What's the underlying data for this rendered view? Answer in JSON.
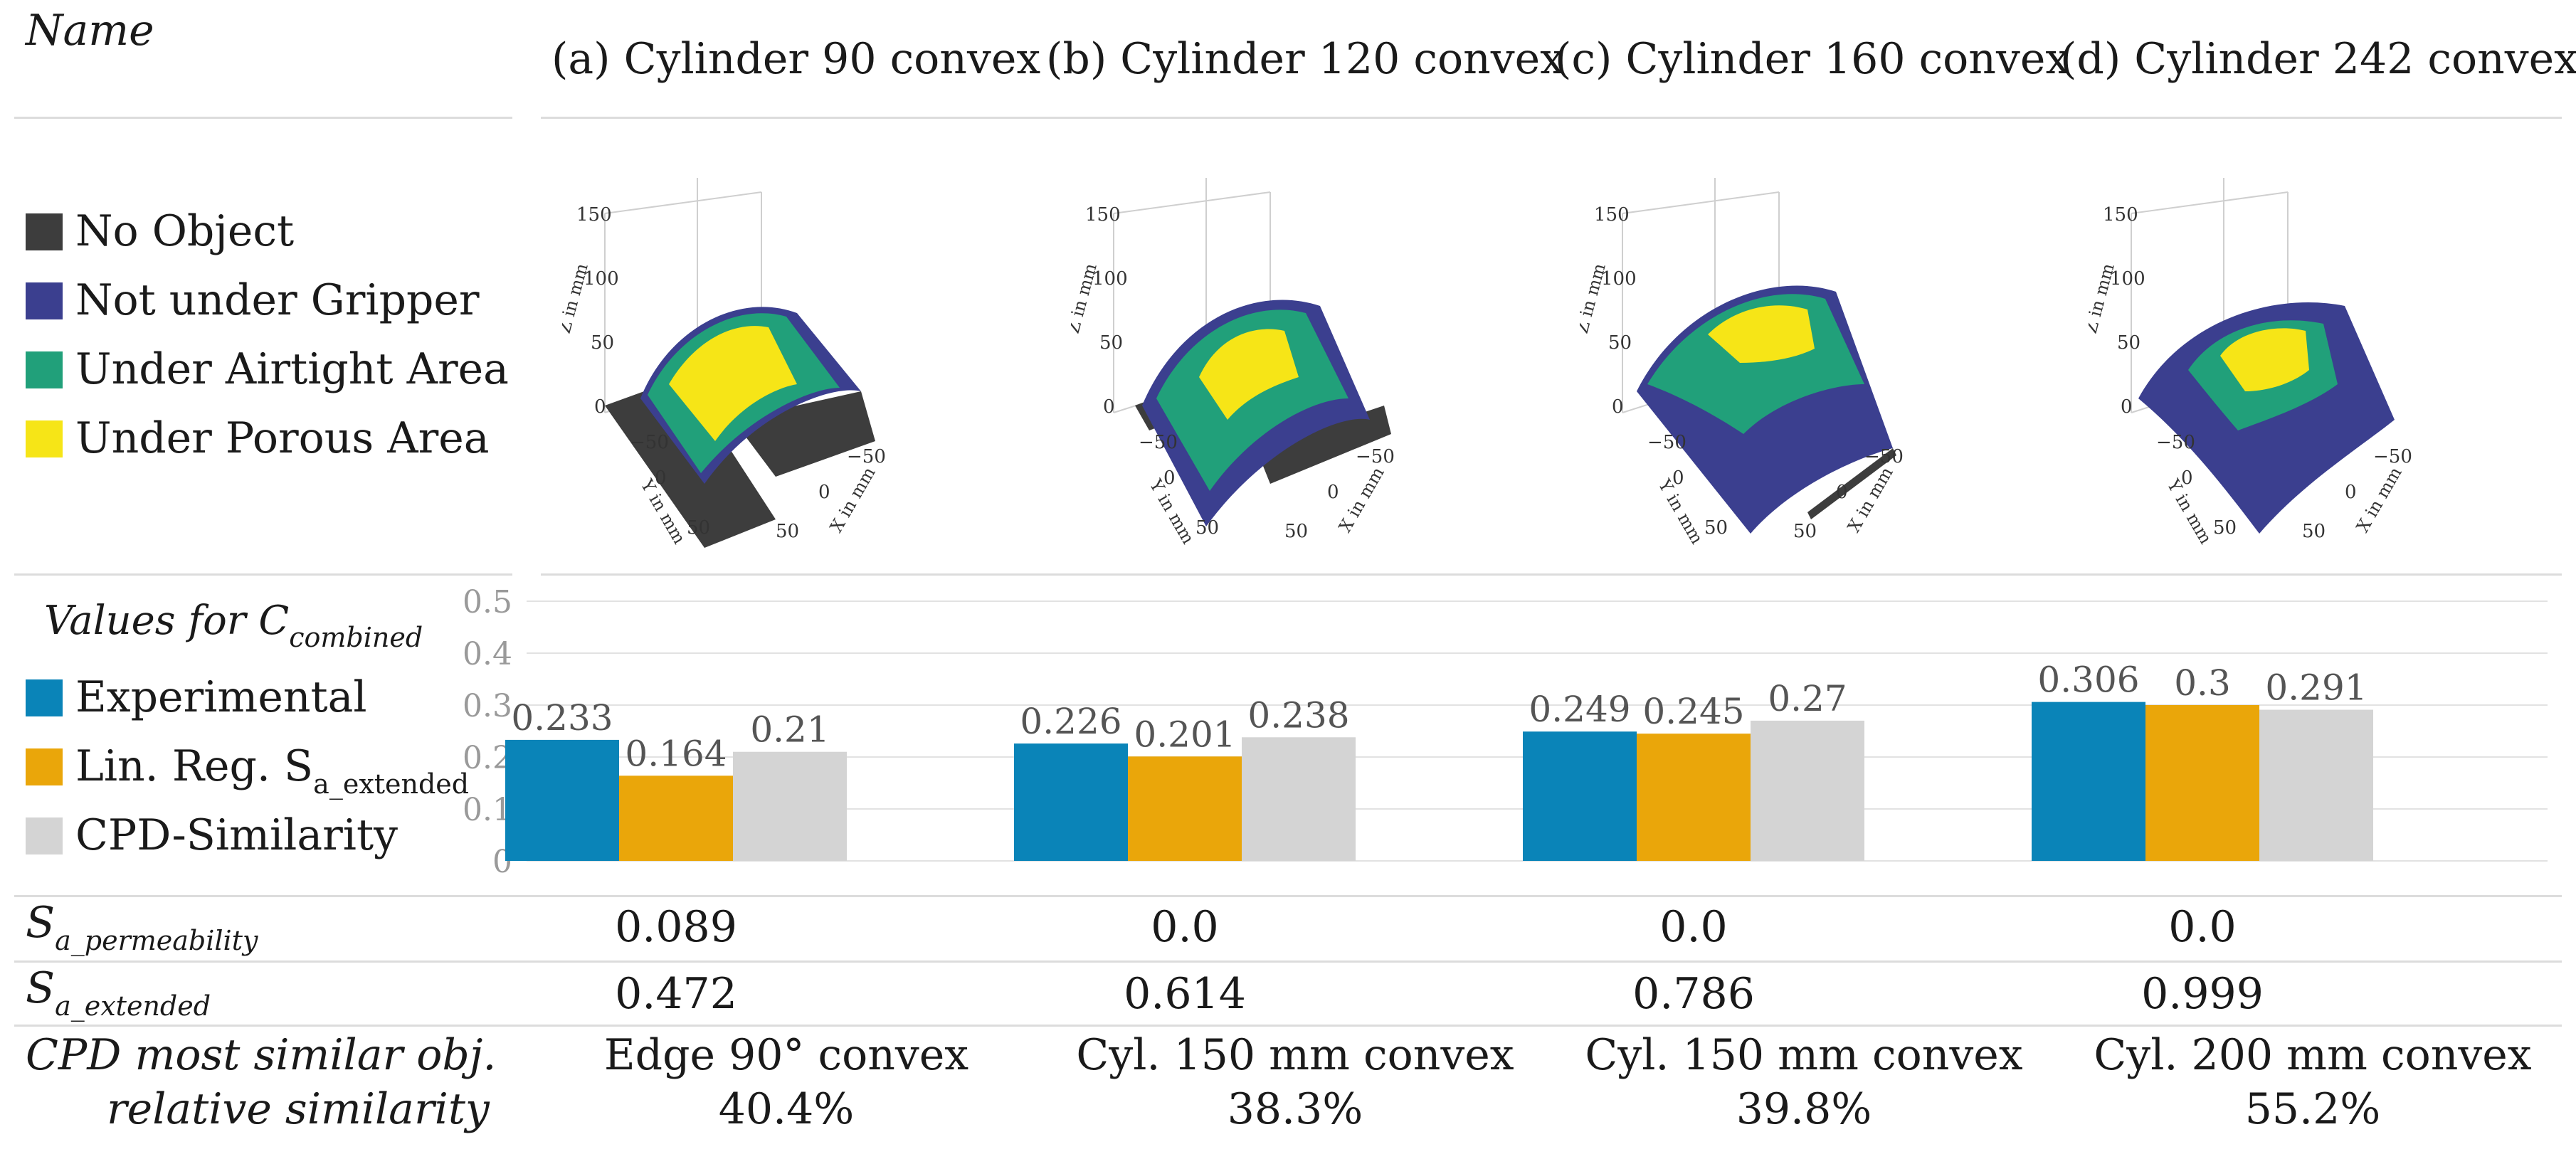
{
  "header": {
    "name_label": "Name",
    "columns": [
      "(a) Cylinder 90 convex",
      "(b) Cylinder 120 convex",
      "(c) Cylinder 160 convex",
      "(d) Cylinder 242 convex"
    ]
  },
  "legend": {
    "items": [
      {
        "label": "No Object",
        "color": "#3d3d3d"
      },
      {
        "label": "Not under Gripper",
        "color": "#3b3f8f"
      },
      {
        "label": "Under Airtight Area",
        "color": "#21a07a"
      },
      {
        "label": "Under Porous Area",
        "color": "#f6e517"
      }
    ]
  },
  "plots3d": {
    "axis_z_label": "Z in mm",
    "axis_y_label": "Y in mm",
    "axis_x_label": "X in mm",
    "z_ticks": [
      "150",
      "100",
      "50",
      "0"
    ],
    "y_ticks": [
      "−50",
      "0",
      "50"
    ],
    "x_ticks": [
      "−50",
      "0",
      "50"
    ]
  },
  "values_section": {
    "title_prefix": "Values for C",
    "title_sub": "combined",
    "series_legend": [
      {
        "label": "Experimental",
        "sub": "",
        "color": "#0a84b8"
      },
      {
        "label": "Lin. Reg. S",
        "sub": "a_extended",
        "color": "#eaa60a"
      },
      {
        "label": "CPD-Similarity",
        "sub": "",
        "color": "#d4d4d4"
      }
    ]
  },
  "chart_data": {
    "type": "bar",
    "title": "Values for C_combined",
    "categories": [
      "(a) Cylinder 90 convex",
      "(b) Cylinder 120 convex",
      "(c) Cylinder 160 convex",
      "(d) Cylinder 242 convex"
    ],
    "series": [
      {
        "name": "Experimental",
        "values": [
          0.233,
          0.226,
          0.249,
          0.306
        ],
        "labels": [
          "0.233",
          "0.226",
          "0.249",
          "0.306"
        ],
        "color": "#0a84b8"
      },
      {
        "name": "Lin. Reg. S_a_extended",
        "values": [
          0.164,
          0.201,
          0.245,
          0.3
        ],
        "labels": [
          "0.164",
          "0.201",
          "0.245",
          "0.3"
        ],
        "color": "#eaa60a"
      },
      {
        "name": "CPD-Similarity",
        "values": [
          0.21,
          0.238,
          0.27,
          0.291
        ],
        "labels": [
          "0.21",
          "0.238",
          "0.27",
          "0.291"
        ],
        "color": "#d4d4d4"
      }
    ],
    "ylim": [
      0,
      0.5
    ],
    "yticks": [
      "0",
      "0.1",
      "0.2",
      "0.3",
      "0.4",
      "0.5"
    ],
    "grid": true
  },
  "rows": {
    "sa_perm": {
      "label": "S",
      "sub": "a_permeability",
      "values": [
        "0.089",
        "0.0",
        "0.0",
        "0.0"
      ]
    },
    "sa_ext": {
      "label": "S",
      "sub": "a_extended",
      "values": [
        "0.472",
        "0.614",
        "0.786",
        "0.999"
      ]
    },
    "cpd": {
      "label_line1": "CPD most similar obj.",
      "label_line2": "relative similarity",
      "objects": [
        "Edge 90° convex",
        "Cyl. 150 mm convex",
        "Cyl. 150 mm convex",
        "Cyl. 200 mm convex"
      ],
      "similarities": [
        "40.4%",
        "38.3%",
        "39.8%",
        "55.2%"
      ]
    }
  }
}
